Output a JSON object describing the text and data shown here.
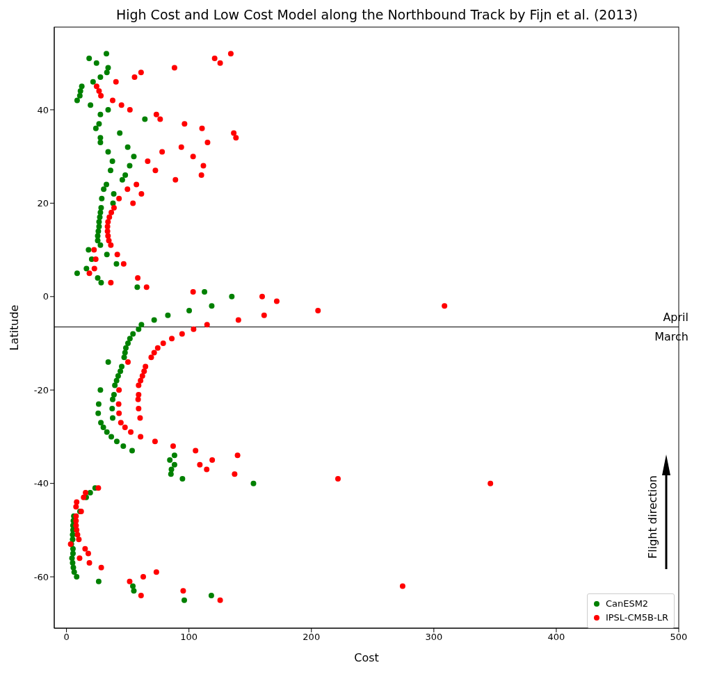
{
  "chart_data": {
    "type": "scatter",
    "title": "High Cost and Low Cost Model along the Northbound Track by Fijn et al. (2013)",
    "xlabel": "Cost",
    "ylabel": "Latitude",
    "xlim": [
      -10,
      500
    ],
    "xticks": [
      0,
      100,
      200,
      300,
      400,
      500
    ],
    "ylim": [
      -71,
      57.7
    ],
    "yticks": [
      -60,
      -40,
      -20,
      0,
      20,
      40
    ],
    "grid": false,
    "legend": "bottom right",
    "marker": "circle",
    "ref_lines": [
      {
        "axis": "y",
        "value": -6.5,
        "color": "#000000"
      }
    ],
    "annotations": [
      "April",
      "March",
      "Flight direction"
    ],
    "series": [
      {
        "name": "CanESM2",
        "color": "#008000",
        "x": [
          32.6,
          18.5,
          24.5,
          34,
          33,
          27.7,
          21.7,
          12.5,
          11.4,
          10.9,
          8.7,
          19.6,
          34,
          27.7,
          64,
          26.6,
          24,
          43.5,
          27.7,
          27.7,
          50,
          34,
          55,
          37.5,
          51.6,
          36,
          48,
          45.6,
          32.6,
          30.4,
          38.6,
          28.8,
          38,
          28.3,
          27.7,
          27.2,
          26.6,
          26.6,
          26,
          25.5,
          25.5,
          27.7,
          18,
          33,
          20.6,
          40.8,
          16.3,
          8.7,
          25.5,
          28.3,
          57.8,
          112.7,
          135,
          118.6,
          100.2,
          82.8,
          71.6,
          61.2,
          58.9,
          54.3,
          51.8,
          50.2,
          48.5,
          47.8,
          47.1,
          34.1,
          45.1,
          44,
          42.2,
          40.9,
          39.5,
          27.7,
          38.8,
          37.7,
          26.3,
          37.3,
          25.9,
          37.7,
          28.1,
          30.1,
          33,
          36.6,
          41.1,
          46.4,
          53.6,
          88.2,
          84.4,
          88.2,
          85.7,
          85.3,
          94.7,
          152.7,
          23.4,
          19.4,
          16.1,
          11,
          6,
          5.6,
          5.3,
          5.3,
          5,
          5,
          4,
          5.3,
          5.3,
          4.5,
          5,
          5.6,
          6.3,
          8.3,
          26.3,
          54.2,
          55,
          118.3,
          96.2
        ],
        "values": [
          52,
          51,
          50,
          49,
          48,
          47,
          46,
          45,
          44,
          43,
          42,
          41,
          40,
          39,
          38,
          37,
          36,
          35,
          34,
          33,
          32,
          31,
          30,
          29,
          28,
          27,
          26,
          25,
          24,
          23,
          22,
          21,
          20,
          19,
          18,
          17,
          16,
          15,
          14,
          13,
          12,
          11,
          10,
          9,
          8,
          7,
          6,
          5,
          4,
          3,
          2,
          1,
          0,
          -2,
          -3,
          -4,
          -5,
          -6,
          -7,
          -8,
          -9,
          -10,
          -11,
          -12,
          -13,
          -14,
          -15,
          -16,
          -17,
          -18,
          -19,
          -20,
          -21,
          -22,
          -23,
          -24,
          -25,
          -26,
          -27,
          -28,
          -29,
          -30,
          -31,
          -32,
          -33,
          -34,
          -35,
          -36,
          -37,
          -38,
          -39,
          -40,
          -41,
          -42,
          -43,
          -46,
          -47,
          -48,
          -49,
          -50,
          -51,
          -52,
          -53,
          -54,
          -55,
          -56,
          -57,
          -58,
          -59,
          -60,
          -61,
          -62,
          -63,
          -64,
          -65
        ]
      },
      {
        "name": "IPSL-CM5B-LR",
        "color": "#ff0000",
        "x": [
          134.2,
          121,
          125.5,
          88.2,
          60.9,
          55.6,
          40.4,
          24.6,
          26.6,
          28.1,
          37.7,
          44.9,
          51.8,
          73.4,
          76.5,
          96.4,
          110.7,
          136.6,
          138.4,
          115.2,
          93.8,
          78.1,
          103.4,
          66.3,
          111.8,
          72.6,
          110.2,
          89,
          57.1,
          49.8,
          61.2,
          42.9,
          54.3,
          38.8,
          36.6,
          35,
          33.9,
          33.5,
          33.5,
          33.9,
          34.6,
          36.2,
          22.5,
          41.5,
          23.9,
          46.7,
          22.8,
          18.7,
          58.2,
          36.2,
          65.4,
          103.4,
          159.8,
          171.7,
          308.7,
          205.4,
          161.4,
          140.4,
          114.8,
          103.8,
          94.4,
          86,
          79,
          74.5,
          71.6,
          69.2,
          50.2,
          64.5,
          63.4,
          62,
          60.5,
          58.9,
          42.9,
          58.9,
          58.5,
          42.6,
          58.9,
          42.9,
          60.1,
          44.4,
          47.8,
          52.5,
          60.5,
          72.3,
          87.1,
          105.4,
          139.7,
          119,
          108.9,
          114.5,
          137.3,
          221.7,
          346.2,
          26,
          15.6,
          14,
          8.3,
          7.8,
          12,
          7.8,
          7.8,
          7.8,
          8.3,
          9,
          10.1,
          3.4,
          15.2,
          17.8,
          10.7,
          18.7,
          28.4,
          73.4,
          62.7,
          51.6,
          274.5,
          95.3,
          60.9,
          125.5
        ],
        "values": [
          52,
          51,
          50,
          49,
          48,
          47,
          46,
          45,
          44,
          43,
          42,
          41,
          40,
          39,
          38,
          37,
          36,
          35,
          34,
          33,
          32,
          31,
          30,
          29,
          28,
          27,
          26,
          25,
          24,
          23,
          22,
          21,
          20,
          19,
          18,
          17,
          16,
          15,
          14,
          13,
          12,
          11,
          10,
          9,
          8,
          7,
          6,
          5,
          4,
          3,
          2,
          1,
          0,
          -1,
          -2,
          -3,
          -4,
          -5,
          -6,
          -7,
          -8,
          -9,
          -10,
          -11,
          -12,
          -13,
          -14,
          -15,
          -16,
          -17,
          -18,
          -19,
          -20,
          -21,
          -22,
          -23,
          -24,
          -25,
          -26,
          -27,
          -28,
          -29,
          -30,
          -31,
          -32,
          -33,
          -34,
          -35,
          -36,
          -37,
          -38,
          -39,
          -40,
          -41,
          -42,
          -43,
          -44,
          -45,
          -46,
          -47,
          -48,
          -49,
          -50,
          -51,
          -52,
          -53,
          -54,
          -55,
          -56,
          -57,
          -58,
          -59,
          -60,
          -61,
          -62,
          -63,
          -64,
          -65
        ]
      }
    ]
  }
}
